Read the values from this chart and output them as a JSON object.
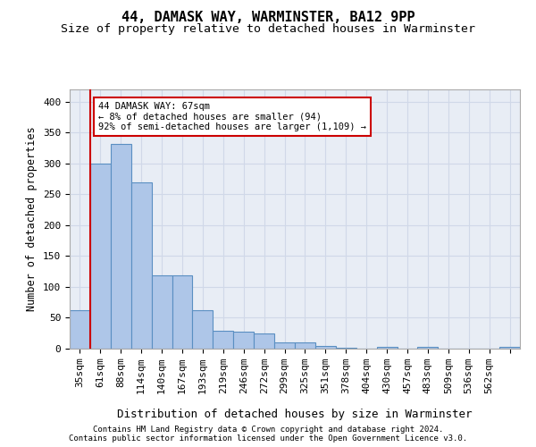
{
  "title1": "44, DAMASK WAY, WARMINSTER, BA12 9PP",
  "title2": "Size of property relative to detached houses in Warminster",
  "xlabel": "Distribution of detached houses by size in Warminster",
  "ylabel": "Number of detached properties",
  "bar_values": [
    62,
    300,
    332,
    270,
    119,
    119,
    63,
    29,
    28,
    25,
    10,
    10,
    5,
    2,
    0,
    3,
    0,
    3,
    0,
    0,
    0,
    3
  ],
  "bar_labels": [
    "35sqm",
    "61sqm",
    "88sqm",
    "114sqm",
    "140sqm",
    "167sqm",
    "193sqm",
    "219sqm",
    "246sqm",
    "272sqm",
    "299sqm",
    "325sqm",
    "351sqm",
    "378sqm",
    "404sqm",
    "430sqm",
    "457sqm",
    "483sqm",
    "509sqm",
    "536sqm",
    "562sqm",
    ""
  ],
  "bar_color": "#aec6e8",
  "bar_edge_color": "#5a8fc2",
  "property_line_x": 0.5,
  "annotation_text": "44 DAMASK WAY: 67sqm\n← 8% of detached houses are smaller (94)\n92% of semi-detached houses are larger (1,109) →",
  "annotation_box_color": "#ffffff",
  "annotation_box_edge_color": "#cc0000",
  "red_line_color": "#cc0000",
  "grid_color": "#d0d8e8",
  "background_color": "#e8edf5",
  "ylim": [
    0,
    420
  ],
  "yticks": [
    0,
    50,
    100,
    150,
    200,
    250,
    300,
    350,
    400
  ],
  "footer1": "Contains HM Land Registry data © Crown copyright and database right 2024.",
  "footer2": "Contains public sector information licensed under the Open Government Licence v3.0.",
  "title1_fontsize": 11,
  "title2_fontsize": 9.5,
  "xlabel_fontsize": 9,
  "ylabel_fontsize": 8.5,
  "tick_fontsize": 8
}
